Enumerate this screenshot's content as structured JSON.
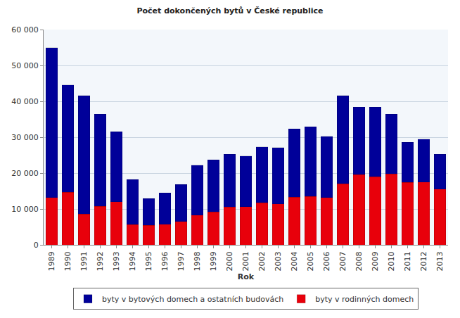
{
  "chart_data": {
    "type": "bar",
    "title": "Počet dokončených bytů v České republice",
    "x_label": "Rok",
    "categories": [
      "1989",
      "1990",
      "1991",
      "1992",
      "1993",
      "1994",
      "1995",
      "1996",
      "1997",
      "1998",
      "1999",
      "2000",
      "2001",
      "2002",
      "2003",
      "2004",
      "2005",
      "2006",
      "2007",
      "2008",
      "2009",
      "2010",
      "2011",
      "2012",
      "2013"
    ],
    "series": [
      {
        "name": "byty v rodinných domech",
        "color": "#e8000b",
        "values": [
          13200,
          14700,
          8600,
          10700,
          12000,
          5600,
          5400,
          5700,
          6500,
          8300,
          9200,
          10500,
          10600,
          11700,
          11400,
          13300,
          13500,
          13200,
          17000,
          19600,
          19000,
          19800,
          17400,
          17500,
          15500
        ]
      },
      {
        "name": "byty v bytových domech a ostatních budovách",
        "color": "#000099",
        "values": [
          41800,
          29900,
          33000,
          25700,
          19500,
          12600,
          7500,
          8800,
          10300,
          13900,
          14500,
          14700,
          14200,
          15600,
          15700,
          19000,
          19400,
          17000,
          24600,
          18800,
          19400,
          16600,
          11200,
          12000,
          9700
        ]
      }
    ],
    "stacked": true,
    "ylim": [
      0,
      60000
    ],
    "yticks": [
      0,
      {
        "value": 10000,
        "label": "10 000"
      },
      {
        "value": 20000,
        "label": "20 000"
      },
      {
        "value": 30000,
        "label": "30 000"
      },
      {
        "value": 40000,
        "label": "40 000"
      },
      {
        "value": 50000,
        "label": "50 000"
      },
      {
        "value": 60000,
        "label": "60 000"
      }
    ],
    "grid": true,
    "legend": "bottom"
  }
}
